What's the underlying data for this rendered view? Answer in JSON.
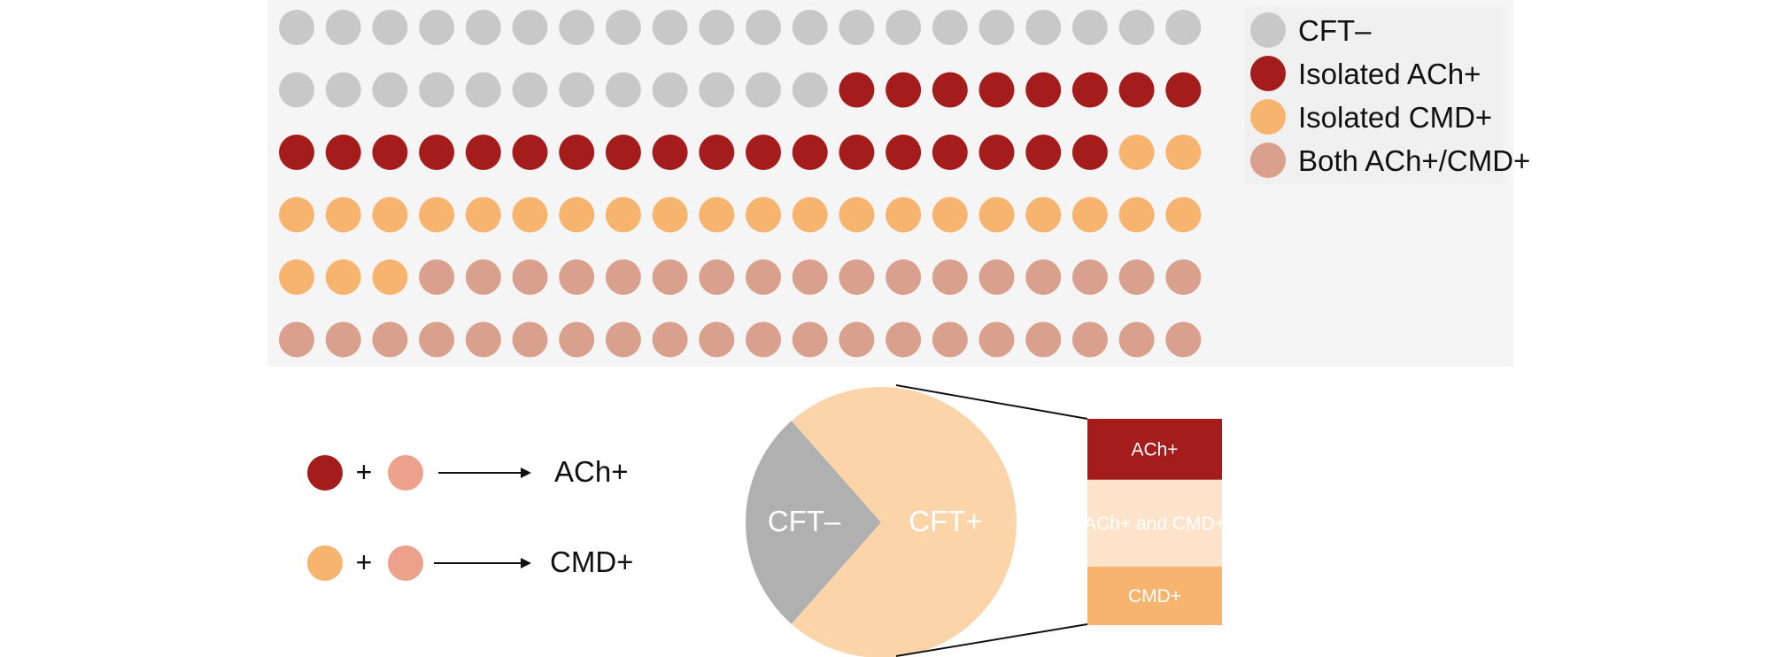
{
  "colors": {
    "cft_neg": "#c8c8c8",
    "isolated_ach": "#a51c1c",
    "isolated_cmd": "#f6b46e",
    "both": "#d9a08e",
    "both_equation": "#eda18d",
    "panel_bg": "#f5f5f5",
    "pie_cft_neg": "#b0b0b0",
    "pie_cft_pos": "#fbd4a9",
    "bar_ach": "#a51c1c",
    "bar_both": "#fde3c9",
    "bar_cmd": "#f6b46e"
  },
  "chart_data": [
    {
      "type": "waffle",
      "grid": {
        "rows": 6,
        "columns": 20
      },
      "categories": [
        "CFT–",
        "Isolated ACh+",
        "Isolated CMD+",
        "Both ACh+/CMD+"
      ],
      "values": [
        32,
        26,
        25,
        37
      ],
      "legend_placement": "top-right"
    },
    {
      "type": "pie",
      "slices": [
        {
          "label": "CFT–",
          "value": 27
        },
        {
          "label": "CFT+",
          "value": 73
        }
      ]
    },
    {
      "type": "bar",
      "stacked": true,
      "segments": [
        {
          "label": "ACh+",
          "value": 26
        },
        {
          "label": "ACh+ and CMD+",
          "value": 37
        },
        {
          "label": "CMD+",
          "value": 25
        }
      ]
    }
  ],
  "legend": [
    "CFT–",
    "Isolated ACh+",
    "Isolated CMD+",
    "Both ACh+/CMD+"
  ],
  "equations": [
    {
      "plus": "+",
      "result": "ACh+"
    },
    {
      "plus": "+",
      "result": "CMD+"
    }
  ]
}
